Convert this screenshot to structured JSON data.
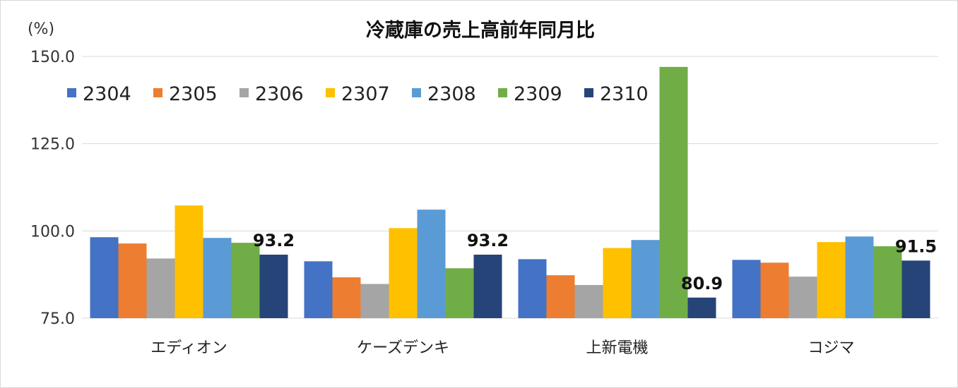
{
  "chart_data": {
    "type": "bar",
    "title": "冷蔵庫の売上高前年同月比",
    "ylabel": "(%)",
    "xlabel": "",
    "ylim": [
      75,
      150
    ],
    "yticks": [
      "75.0",
      "100.0",
      "125.0",
      "150.0"
    ],
    "ytick_values": [
      75,
      100,
      125,
      150
    ],
    "grid": true,
    "legend_position": "top",
    "categories": [
      "エディオン",
      "ケーズデンキ",
      "上新電機",
      "コジマ"
    ],
    "series": [
      {
        "name": "2304",
        "color": "#4472C4",
        "values": [
          98.2,
          91.3,
          91.9,
          91.7
        ]
      },
      {
        "name": "2305",
        "color": "#ED7D31",
        "values": [
          96.4,
          86.7,
          87.3,
          90.9
        ]
      },
      {
        "name": "2306",
        "color": "#A5A5A5",
        "values": [
          92.1,
          84.8,
          84.5,
          86.9
        ]
      },
      {
        "name": "2307",
        "color": "#FFC000",
        "values": [
          107.3,
          100.8,
          95.1,
          96.8
        ]
      },
      {
        "name": "2308",
        "color": "#5B9BD5",
        "values": [
          98.0,
          106.1,
          97.4,
          98.4
        ]
      },
      {
        "name": "2309",
        "color": "#70AD47",
        "values": [
          96.6,
          89.3,
          147.0,
          95.6
        ]
      },
      {
        "name": "2310",
        "color": "#264478",
        "values": [
          93.2,
          93.2,
          80.9,
          91.5
        ]
      }
    ],
    "data_labels": {
      "series": "2310",
      "labels": [
        "93.2",
        "93.2",
        "80.9",
        "91.5"
      ]
    }
  }
}
